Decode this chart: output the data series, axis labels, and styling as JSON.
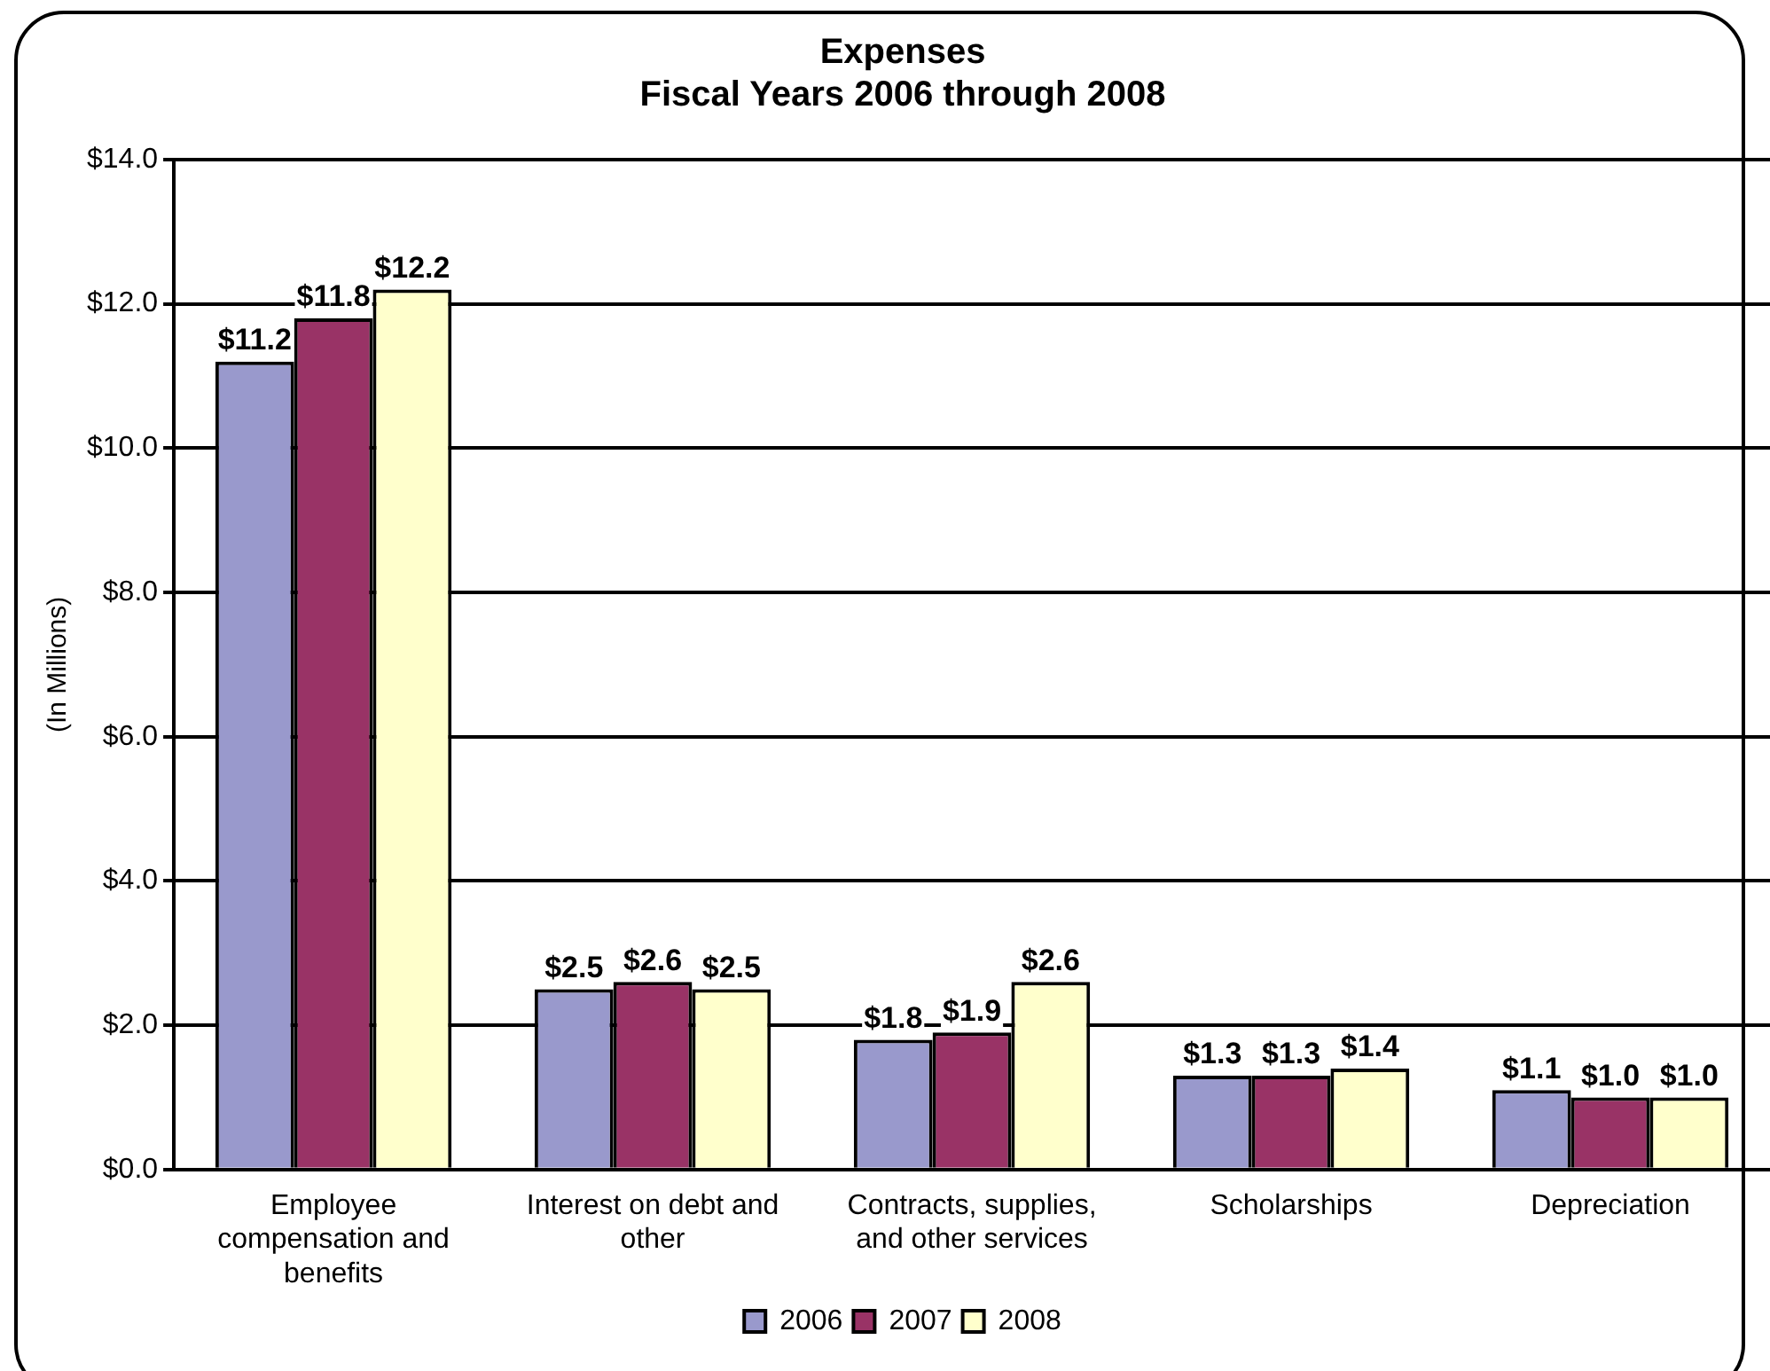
{
  "chart_data": {
    "type": "bar",
    "title": "Expenses",
    "subtitle": "Fiscal Years 2006 through 2008",
    "ylabel": "(In Millions)",
    "categories": [
      "Employee compensation and benefits",
      "Interest on debt and other",
      "Contracts, supplies, and other services",
      "Scholarships",
      "Depreciation"
    ],
    "series": [
      {
        "name": "2006",
        "color": "#9999cc",
        "values": [
          11.2,
          2.5,
          1.8,
          1.3,
          1.1
        ],
        "value_labels": [
          "$11.2",
          "$2.5",
          "$1.8",
          "$1.3",
          "$1.1"
        ]
      },
      {
        "name": "2007",
        "color": "#993366",
        "values": [
          11.8,
          2.6,
          1.9,
          1.3,
          1.0
        ],
        "value_labels": [
          "$11.8",
          "$2.6",
          "$1.9",
          "$1.3",
          "$1.0"
        ]
      },
      {
        "name": "2008",
        "color": "#ffffcc",
        "values": [
          12.2,
          2.5,
          2.6,
          1.4,
          1.0
        ],
        "value_labels": [
          "$12.2",
          "$2.5",
          "$2.6",
          "$1.4",
          "$1.0"
        ]
      }
    ],
    "ylim": [
      0,
      14
    ],
    "yticks": [
      {
        "value": 0,
        "label": "$0.0"
      },
      {
        "value": 2,
        "label": "$2.0"
      },
      {
        "value": 4,
        "label": "$4.0"
      },
      {
        "value": 6,
        "label": "$6.0"
      },
      {
        "value": 8,
        "label": "$8.0"
      },
      {
        "value": 10,
        "label": "$10.0"
      },
      {
        "value": 12,
        "label": "$12.0"
      },
      {
        "value": 14,
        "label": "$14.0"
      }
    ],
    "grid": "y",
    "legend": "bottom"
  }
}
